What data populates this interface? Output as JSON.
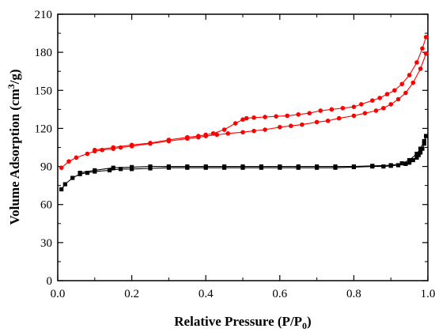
{
  "chart_data": {
    "type": "scatter",
    "title": "",
    "xlabel": "Relative Pressure (P/P",
    "xlabel_sub": "0",
    "xlabel_end": ")",
    "ylabel": "Volume Adsorption (cm",
    "ylabel_sup": "3",
    "ylabel_end": "/g)",
    "xlim": [
      0.0,
      1.0
    ],
    "ylim": [
      0,
      210
    ],
    "xticks": [
      "0.0",
      "0.2",
      "0.4",
      "0.6",
      "0.8",
      "1.0"
    ],
    "yticks": [
      "0",
      "30",
      "60",
      "90",
      "120",
      "150",
      "180",
      "210"
    ],
    "grid": false,
    "legend": "none",
    "series": [
      {
        "color": "#000000",
        "marker": "square",
        "x": [
          0.01,
          0.02,
          0.04,
          0.06,
          0.08,
          0.1,
          0.14,
          0.17,
          0.2,
          0.25,
          0.3,
          0.35,
          0.4,
          0.45,
          0.5,
          0.55,
          0.6,
          0.65,
          0.7,
          0.75,
          0.8,
          0.85,
          0.88,
          0.9,
          0.92,
          0.94,
          0.95,
          0.96,
          0.97,
          0.975,
          0.98,
          0.985,
          0.99,
          0.995
        ],
        "y": [
          72,
          76,
          81,
          84,
          85,
          86,
          87,
          88,
          88,
          88.5,
          89,
          89,
          89,
          89,
          89,
          89,
          89,
          89,
          89,
          89,
          89.5,
          90,
          90,
          90.5,
          91,
          92,
          93,
          95,
          97,
          99,
          101,
          104,
          108,
          114
        ]
      },
      {
        "color": "#000000",
        "marker": "square",
        "x": [
          0.995,
          0.99,
          0.98,
          0.97,
          0.95,
          0.93,
          0.9,
          0.85,
          0.8,
          0.75,
          0.7,
          0.65,
          0.6,
          0.55,
          0.5,
          0.45,
          0.4,
          0.35,
          0.3,
          0.25,
          0.2,
          0.15,
          0.1,
          0.06
        ],
        "y": [
          114,
          110,
          104,
          100,
          95,
          92.5,
          91,
          90.5,
          90,
          90,
          90,
          90,
          90,
          90,
          90,
          90,
          90,
          90,
          90,
          90,
          89.5,
          89,
          87,
          85
        ]
      },
      {
        "color": "#ff0000",
        "marker": "circle",
        "x": [
          0.01,
          0.03,
          0.05,
          0.08,
          0.1,
          0.12,
          0.15,
          0.17,
          0.2,
          0.25,
          0.3,
          0.35,
          0.38,
          0.4,
          0.43,
          0.46,
          0.5,
          0.53,
          0.56,
          0.6,
          0.63,
          0.66,
          0.7,
          0.73,
          0.76,
          0.8,
          0.83,
          0.86,
          0.88,
          0.9,
          0.92,
          0.94,
          0.96,
          0.98,
          0.995
        ],
        "y": [
          89,
          94,
          97,
          100,
          102,
          103,
          104,
          105,
          106,
          108,
          110,
          112,
          113,
          114,
          115,
          116,
          117,
          118,
          119,
          121,
          122,
          123,
          125,
          126,
          128,
          130,
          132,
          134,
          136,
          139,
          143,
          148,
          156,
          167,
          179
        ]
      },
      {
        "color": "#ff0000",
        "marker": "circle",
        "x": [
          0.995,
          0.985,
          0.97,
          0.95,
          0.93,
          0.91,
          0.89,
          0.87,
          0.85,
          0.82,
          0.8,
          0.77,
          0.74,
          0.71,
          0.68,
          0.65,
          0.62,
          0.59,
          0.56,
          0.53,
          0.51,
          0.5,
          0.48,
          0.45,
          0.42,
          0.4,
          0.38,
          0.35,
          0.3,
          0.25,
          0.2,
          0.15,
          0.1
        ],
        "y": [
          192,
          183,
          172,
          162,
          155,
          150,
          147,
          144,
          142,
          139,
          137,
          136,
          135,
          134,
          132,
          131,
          130,
          129.5,
          129,
          128.5,
          128,
          127,
          124,
          119,
          116,
          115,
          114,
          113,
          111,
          108.5,
          107,
          105,
          103
        ]
      }
    ]
  }
}
